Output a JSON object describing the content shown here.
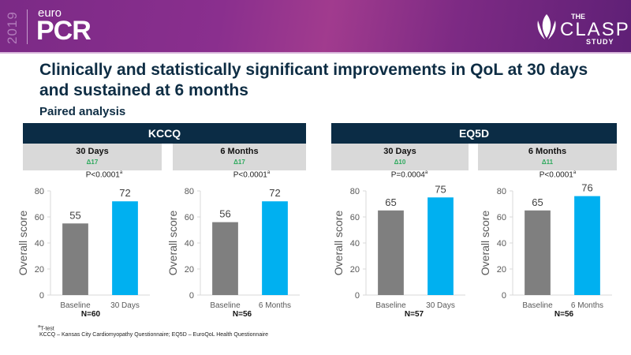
{
  "header": {
    "year": "2019",
    "brand_prefix": "euro",
    "brand_name": "PCR",
    "study_the": "THE",
    "study_name": "CLASP",
    "study_suffix": "STUDY"
  },
  "title": "Clinically and statistically significant improvements in QoL at 30 days and sustained at 6 months",
  "subtitle": "Paired analysis",
  "groups": [
    {
      "label": "KCCQ"
    },
    {
      "label": "EQ5D"
    }
  ],
  "panels": [
    {
      "label": "30 Days",
      "delta": "Δ17",
      "p_value": "P<0.0001",
      "p_sup": "a",
      "n": "N=60"
    },
    {
      "label": "6 Months",
      "delta": "Δ17",
      "p_value": "P<0.0001",
      "p_sup": "a",
      "n": "N=56"
    },
    {
      "label": "30 Days",
      "delta": "Δ10",
      "p_value": "P=0.0004",
      "p_sup": "a",
      "n": "N=57"
    },
    {
      "label": "6 Months",
      "delta": "Δ11",
      "p_value": "P<0.0001",
      "p_sup": "a",
      "n": "N=56"
    }
  ],
  "colors": {
    "baseline": "#7f7f7f",
    "followup": "#00b0f0",
    "header_bg": "#0b2c45",
    "delta_green": "#2eaa5e"
  },
  "chart_data": [
    {
      "type": "bar",
      "group": "KCCQ",
      "title": "30 Days",
      "categories": [
        "Baseline",
        "30 Days"
      ],
      "values": [
        55,
        72
      ],
      "ylabel": "Overall score",
      "xlabel": "",
      "ylim": [
        0,
        80
      ],
      "yticks": [
        0,
        20,
        40,
        60,
        80
      ],
      "grid": false
    },
    {
      "type": "bar",
      "group": "KCCQ",
      "title": "6 Months",
      "categories": [
        "Baseline",
        "6 Months"
      ],
      "values": [
        56,
        72
      ],
      "ylabel": "Overall score",
      "xlabel": "",
      "ylim": [
        0,
        80
      ],
      "yticks": [
        0,
        20,
        40,
        60,
        80
      ],
      "grid": false
    },
    {
      "type": "bar",
      "group": "EQ5D",
      "title": "30 Days",
      "categories": [
        "Baseline",
        "30 Days"
      ],
      "values": [
        65,
        75
      ],
      "ylabel": "Overall score",
      "xlabel": "",
      "ylim": [
        0,
        80
      ],
      "yticks": [
        0,
        20,
        40,
        60,
        80
      ],
      "grid": false
    },
    {
      "type": "bar",
      "group": "EQ5D",
      "title": "6 Months",
      "categories": [
        "Baseline",
        "6 Months"
      ],
      "values": [
        65,
        76
      ],
      "ylabel": "Overall score",
      "xlabel": "",
      "ylim": [
        0,
        80
      ],
      "yticks": [
        0,
        20,
        40,
        60,
        80
      ],
      "grid": false
    }
  ],
  "footnotes": {
    "ttest": "T-test",
    "ttest_sup": "a",
    "abbreviations": "KCCQ – Kansas City Cardiomyopathy Questionnaire; EQ5D – EuroQoL Health Questionnaire"
  }
}
